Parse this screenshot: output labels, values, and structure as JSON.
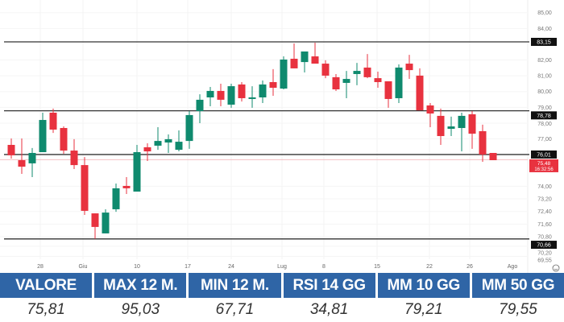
{
  "chart_data": {
    "type": "candlestick",
    "ylim": [
      69.55,
      85.0
    ],
    "grid": true,
    "colors": {
      "up": "#0f8a6e",
      "down": "#e8323f",
      "level_line": "#333333",
      "last_price": "#e8323f"
    },
    "x_tick_labels": [
      "28",
      "Giu",
      "10",
      "17",
      "24",
      "Lug",
      "8",
      "15",
      "22",
      "26",
      "Ago"
    ],
    "y_tick_labels": [
      "85,00",
      "84,00",
      "82,00",
      "81,00",
      "80,00",
      "79,00",
      "78,00",
      "77,00",
      "74,00",
      "73,20",
      "72,40",
      "71,60",
      "70,80",
      "70,20",
      "69,55"
    ],
    "y_tick_values": [
      85.0,
      84.0,
      82.0,
      81.0,
      80.0,
      79.0,
      78.0,
      77.0,
      74.0,
      73.2,
      72.4,
      71.6,
      70.8,
      70.2,
      69.55
    ],
    "levels": [
      {
        "value": 83.15,
        "label": "83,15"
      },
      {
        "value": 78.78,
        "label": "78,78"
      },
      {
        "value": 76.01,
        "label": "76,01"
      },
      {
        "value": 70.66,
        "label": "70,66"
      }
    ],
    "last_price": {
      "value": 75.48,
      "label": "75,48",
      "time": "16:32:56"
    },
    "candles": [
      [
        76.62,
        77.03,
        75.75,
        75.96
      ],
      [
        75.65,
        77.03,
        74.78,
        75.24
      ],
      [
        75.45,
        76.42,
        74.58,
        76.11
      ],
      [
        76.16,
        78.66,
        76.16,
        78.2
      ],
      [
        78.66,
        78.92,
        77.38,
        77.59
      ],
      [
        77.69,
        77.79,
        76.06,
        76.26
      ],
      [
        76.26,
        76.98,
        75.09,
        75.34
      ],
      [
        75.34,
        75.85,
        72.18,
        72.44
      ],
      [
        72.28,
        72.28,
        70.66,
        71.42
      ],
      [
        71.01,
        72.54,
        71.01,
        72.33
      ],
      [
        72.54,
        74.17,
        72.38,
        73.87
      ],
      [
        74.02,
        74.58,
        73.51,
        73.87
      ],
      [
        73.66,
        76.62,
        73.66,
        76.16
      ],
      [
        76.47,
        76.72,
        75.6,
        76.21
      ],
      [
        76.57,
        77.74,
        76.31,
        76.87
      ],
      [
        76.77,
        77.28,
        76.11,
        76.98
      ],
      [
        76.31,
        77.54,
        76.21,
        76.82
      ],
      [
        76.87,
        78.76,
        76.37,
        78.51
      ],
      [
        78.76,
        79.83,
        78.0,
        79.48
      ],
      [
        79.63,
        80.29,
        79.07,
        80.04
      ],
      [
        80.04,
        80.5,
        79.07,
        79.48
      ],
      [
        79.17,
        80.5,
        78.97,
        80.34
      ],
      [
        80.45,
        80.6,
        79.37,
        79.58
      ],
      [
        79.53,
        80.34,
        78.97,
        79.63
      ],
      [
        79.63,
        80.7,
        79.27,
        80.45
      ],
      [
        80.6,
        81.42,
        79.73,
        80.24
      ],
      [
        80.19,
        82.23,
        80.14,
        82.03
      ],
      [
        82.08,
        83.05,
        81.47,
        81.47
      ],
      [
        81.87,
        82.54,
        81.21,
        82.54
      ],
      [
        82.23,
        83.1,
        81.77,
        81.77
      ],
      [
        81.77,
        81.98,
        80.85,
        81.01
      ],
      [
        80.91,
        81.11,
        80.04,
        80.14
      ],
      [
        80.55,
        81.31,
        79.58,
        80.8
      ],
      [
        81.11,
        81.82,
        80.4,
        81.31
      ],
      [
        81.52,
        82.38,
        80.85,
        80.91
      ],
      [
        80.85,
        81.26,
        80.24,
        80.6
      ],
      [
        80.65,
        80.65,
        78.97,
        79.53
      ],
      [
        79.58,
        81.72,
        79.27,
        81.52
      ],
      [
        81.77,
        82.33,
        80.8,
        81.36
      ],
      [
        81.01,
        81.47,
        78.81,
        78.81
      ],
      [
        79.12,
        79.27,
        77.74,
        78.61
      ],
      [
        78.46,
        78.92,
        76.62,
        77.18
      ],
      [
        77.64,
        78.41,
        77.18,
        77.79
      ],
      [
        77.69,
        78.66,
        76.21,
        78.46
      ],
      [
        78.56,
        78.76,
        76.37,
        77.33
      ],
      [
        77.49,
        77.9,
        75.55,
        76.01
      ],
      [
        76.11,
        76.11,
        75.65,
        75.65
      ]
    ]
  },
  "stats": {
    "headers": [
      "VALORE",
      "MAX 12 M.",
      "MIN 12 M.",
      "RSI 14 GG",
      "MM 10 GG",
      "MM 50 GG"
    ],
    "values": [
      "75,81",
      "95,03",
      "67,71",
      "34,81",
      "79,21",
      "79,55"
    ]
  },
  "icons": {
    "axis_settings": "smiley-icon"
  }
}
